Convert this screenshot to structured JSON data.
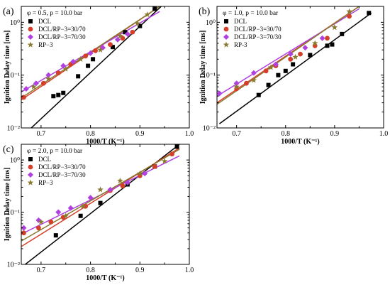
{
  "chart_data": [
    {
      "type": "scatter",
      "panel_label": "(a)",
      "condition": "φ = 0.5, p = 10.0 bar",
      "xlabel": "1000/T (K⁻¹)",
      "ylabel": "Ignition Delay time [ms]",
      "xlim": [
        0.66,
        1.0
      ],
      "ylim": [
        0.01,
        2
      ],
      "yscale": "log",
      "xticks": [
        "0.7",
        "0.8",
        "0.9",
        "1.0"
      ],
      "yticks": [
        "10⁻²",
        "10⁻¹",
        "10⁰"
      ],
      "legend_position": "top-left",
      "series": [
        {
          "name": "DCL",
          "color": "#000000",
          "marker": "square",
          "x": [
            0.725,
            0.735,
            0.745,
            0.775,
            0.795,
            0.805,
            0.845,
            0.87,
            0.9,
            0.93
          ],
          "y": [
            0.04,
            0.042,
            0.046,
            0.095,
            0.15,
            0.2,
            0.34,
            0.65,
            0.85,
            1.8
          ],
          "fit": {
            "x": [
              0.675,
              0.95
            ],
            "y": [
              0.009,
              2.3
            ]
          }
        },
        {
          "name": "DCL/RP−3=30/70",
          "color": "#d43f2a",
          "marker": "circle",
          "x": [
            0.665,
            0.705,
            0.735,
            0.76,
            0.79,
            0.81,
            0.84,
            0.865,
            0.885
          ],
          "y": [
            0.038,
            0.07,
            0.11,
            0.16,
            0.23,
            0.29,
            0.38,
            0.5,
            0.65
          ],
          "fit": {
            "x": [
              0.66,
              0.94
            ],
            "y": [
              0.034,
              2.0
            ]
          }
        },
        {
          "name": "DCL/RP−3=70/30",
          "color": "#b040e0",
          "marker": "diamond",
          "x": [
            0.67,
            0.69,
            0.715,
            0.745,
            0.765,
            0.8,
            0.825,
            0.855,
            0.875
          ],
          "y": [
            0.055,
            0.07,
            0.1,
            0.15,
            0.18,
            0.26,
            0.33,
            0.47,
            0.6
          ],
          "fit": {
            "x": [
              0.66,
              0.94
            ],
            "y": [
              0.048,
              1.6
            ]
          }
        },
        {
          "name": "RP−3",
          "color": "#8a7a30",
          "marker": "star",
          "x": [
            0.685,
            0.715,
            0.75,
            0.78,
            0.82,
            0.86,
            0.895,
            0.915
          ],
          "y": [
            0.06,
            0.085,
            0.13,
            0.2,
            0.3,
            0.55,
            0.95,
            1.4
          ],
          "fit": {
            "x": [
              0.66,
              0.94
            ],
            "y": [
              0.037,
              2.0
            ]
          }
        }
      ]
    },
    {
      "type": "scatter",
      "panel_label": "(b)",
      "condition": "φ = 1.0, p = 10.0 bar",
      "xlabel": "1000/T (K⁻¹)",
      "ylabel": "Ignition Delay time [ms]",
      "xlim": [
        0.66,
        1.0
      ],
      "ylim": [
        0.01,
        2
      ],
      "yscale": "log",
      "xticks": [
        "0.7",
        "0.8",
        "0.9",
        "1.0"
      ],
      "yticks": [
        "10⁻²",
        "10⁻¹",
        "10⁰"
      ],
      "legend_position": "top-left",
      "series": [
        {
          "name": "DCL",
          "color": "#000000",
          "marker": "square",
          "x": [
            0.745,
            0.765,
            0.785,
            0.8,
            0.815,
            0.85,
            0.885,
            0.895,
            0.915,
            0.97
          ],
          "y": [
            0.042,
            0.065,
            0.1,
            0.12,
            0.16,
            0.24,
            0.36,
            0.38,
            0.6,
            1.5
          ],
          "fit": {
            "x": [
              0.665,
              0.975
            ],
            "y": [
              0.012,
              1.5
            ]
          }
        },
        {
          "name": "DCL/RP−3=30/70",
          "color": "#d43f2a",
          "marker": "circle",
          "x": [
            0.7,
            0.72,
            0.76,
            0.78,
            0.81,
            0.83,
            0.86,
            0.885,
            0.93
          ],
          "y": [
            0.055,
            0.07,
            0.12,
            0.15,
            0.2,
            0.25,
            0.36,
            0.5,
            1.3
          ],
          "fit": {
            "x": [
              0.66,
              0.95
            ],
            "y": [
              0.03,
              2.0
            ]
          }
        },
        {
          "name": "DCL/RP−3=70/30",
          "color": "#b040e0",
          "marker": "diamond",
          "x": [
            0.665,
            0.7,
            0.735,
            0.78,
            0.81,
            0.84,
            0.875
          ],
          "y": [
            0.045,
            0.07,
            0.11,
            0.16,
            0.25,
            0.33,
            0.5
          ],
          "fit": {
            "x": [
              0.66,
              0.95
            ],
            "y": [
              0.04,
              1.8
            ]
          }
        },
        {
          "name": "RP-3",
          "color": "#8a7a30",
          "marker": "star",
          "x": [
            0.7,
            0.735,
            0.77,
            0.82,
            0.86,
            0.9,
            0.93
          ],
          "y": [
            0.06,
            0.08,
            0.14,
            0.22,
            0.4,
            0.8,
            1.6
          ],
          "fit": {
            "x": [
              0.66,
              0.95
            ],
            "y": [
              0.028,
              2.0
            ]
          }
        }
      ]
    },
    {
      "type": "scatter",
      "panel_label": "(c)",
      "condition": "φ = 2.0, p = 10.0 bar",
      "xlabel": "1000/T (K⁻¹)",
      "ylabel": "Ignition Delay time [ms]",
      "xlim": [
        0.66,
        1.0
      ],
      "ylim": [
        0.01,
        2
      ],
      "yscale": "log",
      "xticks": [
        "0.7",
        "0.8",
        "0.9",
        "1.0"
      ],
      "yticks": [
        "10⁻²",
        "10⁻¹",
        "10⁰"
      ],
      "legend_position": "top-left",
      "series": [
        {
          "name": "DCL",
          "color": "#000000",
          "marker": "square",
          "x": [
            0.73,
            0.78,
            0.82,
            0.875,
            0.93,
            0.975
          ],
          "y": [
            0.036,
            0.085,
            0.15,
            0.34,
            0.75,
            1.8
          ],
          "fit": {
            "x": [
              0.665,
              0.98
            ],
            "y": [
              0.0095,
              2.0
            ]
          }
        },
        {
          "name": "DCL/RP−3=30/70",
          "color": "#d43f2a",
          "marker": "circle",
          "x": [
            0.665,
            0.695,
            0.72,
            0.745,
            0.79,
            0.84,
            0.865,
            0.9,
            0.93,
            0.965
          ],
          "y": [
            0.04,
            0.05,
            0.065,
            0.08,
            0.13,
            0.26,
            0.32,
            0.5,
            0.75,
            1.3
          ],
          "fit": {
            "x": [
              0.66,
              0.98
            ],
            "y": [
              0.022,
              1.7
            ]
          }
        },
        {
          "name": "DCL/RP−3=70/30",
          "color": "#b040e0",
          "marker": "diamond",
          "x": [
            0.665,
            0.695,
            0.735,
            0.76,
            0.8,
            0.84,
            0.875,
            0.91
          ],
          "y": [
            0.05,
            0.07,
            0.1,
            0.12,
            0.19,
            0.27,
            0.37,
            0.55
          ],
          "fit": {
            "x": [
              0.66,
              0.98
            ],
            "y": [
              0.038,
              1.2
            ]
          }
        },
        {
          "name": "RP−3",
          "color": "#8a7a30",
          "marker": "star",
          "x": [
            0.7,
            0.75,
            0.785,
            0.82,
            0.86,
            0.9,
            0.95
          ],
          "y": [
            0.065,
            0.085,
            0.13,
            0.27,
            0.4,
            0.55,
            0.95
          ],
          "fit": {
            "x": [
              0.66,
              0.98
            ],
            "y": [
              0.028,
              1.6
            ]
          }
        }
      ]
    }
  ]
}
